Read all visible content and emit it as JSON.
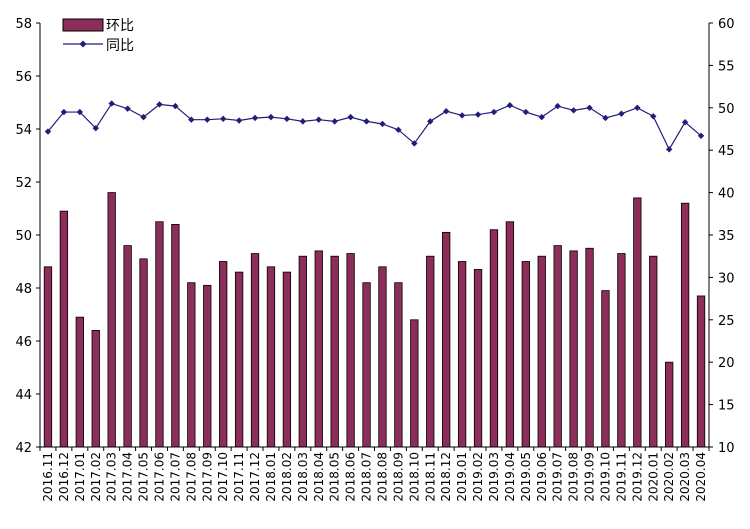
{
  "chart_data": {
    "type": "bar",
    "categories": [
      "2016.11",
      "2016.12",
      "2017.01",
      "2017.02",
      "2017.03",
      "2017.04",
      "2017.05",
      "2017.06",
      "2017.07",
      "2017.08",
      "2017.09",
      "2017.10",
      "2017.11",
      "2017.12",
      "2018.01",
      "2018.02",
      "2018.03",
      "2018.04",
      "2018.05",
      "2018.06",
      "2018.07",
      "2018.08",
      "2018.09",
      "2018.10",
      "2018.11",
      "2018.12",
      "2019.01",
      "2019.02",
      "2019.03",
      "2019.04",
      "2019.05",
      "2019.06",
      "2019.07",
      "2019.08",
      "2019.09",
      "2019.10",
      "2019.11",
      "2019.12",
      "2020.01",
      "2020.02",
      "2020.03",
      "2020.04"
    ],
    "series": [
      {
        "name": "环比",
        "type": "bar",
        "axis": "left",
        "color": "#8c2d5a",
        "values": [
          48.8,
          50.9,
          46.9,
          46.4,
          51.6,
          49.6,
          49.1,
          50.5,
          50.4,
          48.2,
          48.1,
          49.0,
          48.6,
          49.3,
          48.8,
          48.6,
          49.2,
          49.4,
          49.2,
          49.3,
          48.2,
          48.8,
          48.2,
          46.8,
          49.2,
          50.1,
          49.0,
          48.7,
          50.2,
          50.5,
          49.0,
          49.2,
          49.6,
          49.4,
          49.5,
          47.9,
          49.3,
          51.4,
          49.2,
          45.2,
          51.2,
          47.7
        ]
      },
      {
        "name": "同比",
        "type": "line",
        "axis": "right",
        "color": "#1f1f7a",
        "marker": "diamond",
        "values": [
          47.2,
          49.5,
          49.5,
          47.6,
          50.5,
          49.9,
          48.9,
          50.4,
          50.2,
          48.6,
          48.6,
          48.7,
          48.5,
          48.8,
          48.9,
          48.7,
          48.4,
          48.6,
          48.4,
          48.9,
          48.4,
          48.1,
          47.4,
          45.8,
          48.4,
          49.6,
          49.1,
          49.2,
          49.5,
          50.3,
          49.5,
          48.9,
          50.2,
          49.7,
          50.0,
          48.8,
          49.3,
          50.0,
          49.0,
          45.1,
          48.3,
          46.7
        ]
      }
    ],
    "y_left": {
      "min": 42,
      "max": 58,
      "ticks": [
        42,
        44,
        46,
        48,
        50,
        52,
        54,
        56,
        58
      ]
    },
    "y_right": {
      "min": 10,
      "max": 60,
      "ticks": [
        10,
        15,
        20,
        25,
        30,
        35,
        40,
        45,
        50,
        55,
        60
      ]
    },
    "grid": false,
    "legend": {
      "position": "top-left"
    }
  }
}
